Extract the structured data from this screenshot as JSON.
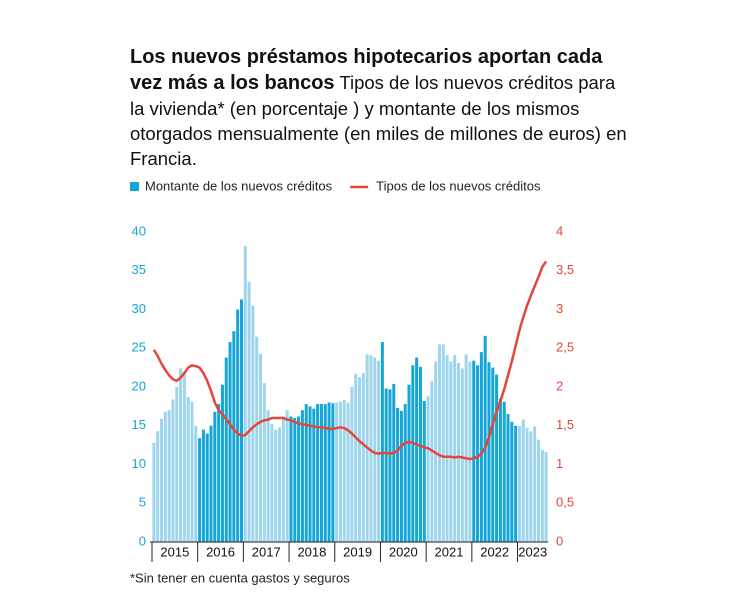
{
  "chart_data": {
    "type": "bar_line",
    "title": "Los nuevos préstamos hipotecarios aportan cada vez más a los bancos",
    "subtitle": "Tipos de los nuevos créditos para la vivienda* (en porcentaje ) y montante de los mismos otorgados mensualmente (en miles de millones de euros) en Francia.",
    "note": "*Sin tener en cuenta gastos y seguros",
    "x_labels": [
      "2015",
      "2016",
      "2017",
      "2018",
      "2019",
      "2020",
      "2021",
      "2022",
      "2023"
    ],
    "bar_colors": [
      "#9fd5ec",
      "#15a6d5"
    ],
    "ylim": [
      0,
      40
    ],
    "yticks": [
      0,
      5,
      10,
      15,
      20,
      25,
      30,
      35,
      40
    ],
    "y2lim": [
      0,
      4
    ],
    "y2ticks": [
      0,
      {
        "value": 0.5,
        "label": "0,5"
      },
      1,
      {
        "value": 1.5,
        "label": "1,5"
      },
      2,
      {
        "value": 2.5,
        "label": "2,5"
      },
      3,
      {
        "value": 3.5,
        "label": "3,5"
      },
      4
    ],
    "series": [
      {
        "name": "Montante de los nuevos créditos",
        "color": "#15a6d5",
        "type": "bar",
        "values": [
          12.8,
          14.3,
          15.9,
          16.8,
          17.0,
          18.4,
          20.0,
          22.4,
          22.0,
          18.7,
          18.1,
          15.0,
          13.4,
          14.5,
          14.0,
          15.0,
          16.8,
          17.8,
          20.3,
          23.8,
          25.8,
          27.2,
          30.0,
          31.3,
          38.2,
          33.6,
          30.5,
          26.5,
          24.3,
          20.5,
          17.0,
          15.2,
          14.5,
          14.8,
          16.2,
          17.0,
          16.2,
          16.0,
          16.2,
          17.0,
          17.8,
          17.5,
          17.2,
          17.8,
          17.8,
          17.8,
          18.0,
          17.9,
          18.0,
          18.1,
          18.3,
          18.0,
          20.0,
          21.7,
          21.3,
          21.8,
          24.2,
          24.1,
          23.8,
          23.4,
          25.8,
          19.8,
          19.7,
          20.4,
          17.3,
          16.9,
          17.8,
          20.3,
          22.8,
          23.8,
          22.6,
          18.2,
          18.8,
          20.8,
          23.3,
          25.5,
          25.5,
          24.1,
          23.3,
          24.1,
          23.1,
          22.4,
          24.2,
          23.3,
          23.4,
          22.8,
          24.5,
          26.6,
          23.2,
          22.5,
          21.6,
          18.5,
          18.1,
          16.5,
          15.5,
          15.0,
          15.0,
          15.8,
          14.7,
          14.3,
          14.9,
          13.2,
          11.9,
          11.6
        ]
      },
      {
        "name": "Tipos de los nuevos créditos",
        "color": "#e4463a",
        "type": "line",
        "axis": "y2",
        "values": [
          2.48,
          2.4,
          2.3,
          2.22,
          2.15,
          2.1,
          2.08,
          2.12,
          2.18,
          2.25,
          2.28,
          2.27,
          2.25,
          2.18,
          2.08,
          1.95,
          1.8,
          1.7,
          1.65,
          1.58,
          1.52,
          1.45,
          1.4,
          1.37,
          1.38,
          1.43,
          1.48,
          1.52,
          1.55,
          1.57,
          1.58,
          1.6,
          1.6,
          1.6,
          1.6,
          1.58,
          1.57,
          1.55,
          1.53,
          1.52,
          1.51,
          1.5,
          1.49,
          1.48,
          1.48,
          1.47,
          1.46,
          1.46,
          1.47,
          1.48,
          1.47,
          1.44,
          1.4,
          1.35,
          1.3,
          1.26,
          1.22,
          1.18,
          1.15,
          1.14,
          1.15,
          1.15,
          1.14,
          1.15,
          1.18,
          1.24,
          1.28,
          1.29,
          1.28,
          1.26,
          1.24,
          1.22,
          1.21,
          1.18,
          1.15,
          1.12,
          1.1,
          1.1,
          1.1,
          1.09,
          1.1,
          1.09,
          1.08,
          1.07,
          1.08,
          1.1,
          1.14,
          1.22,
          1.35,
          1.52,
          1.68,
          1.82,
          1.97,
          2.15,
          2.33,
          2.53,
          2.73,
          2.9,
          3.05,
          3.18,
          3.3,
          3.42,
          3.55,
          3.62
        ]
      }
    ]
  }
}
